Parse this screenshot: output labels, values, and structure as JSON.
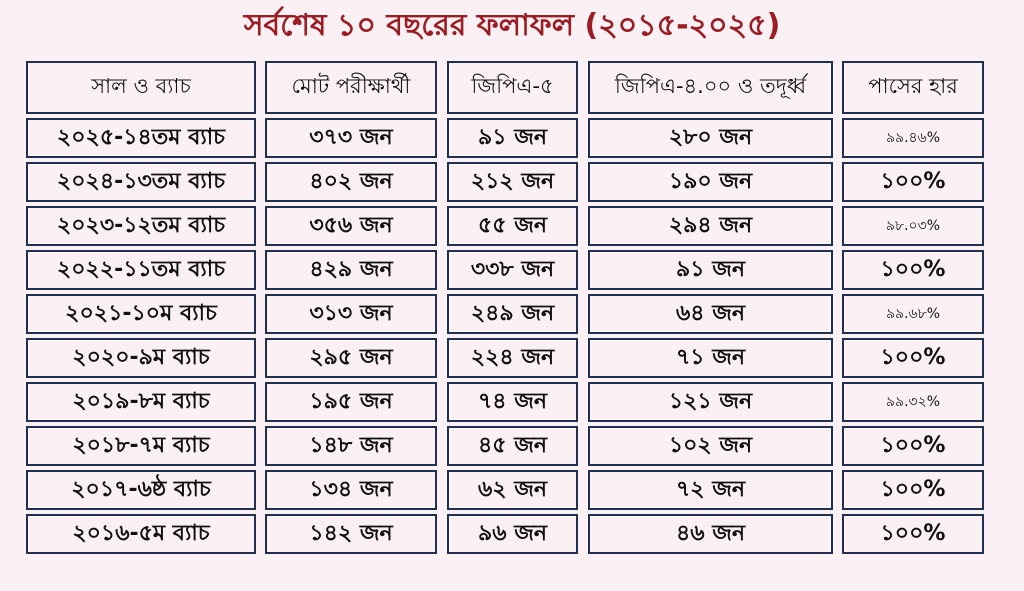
{
  "title": "সর্বশেষ ১০ বছরের ফলাফল (২০১৫-২০২৫)",
  "headers": [
    "সাল ও ব্যাচ",
    "মোট পরীক্ষার্থী",
    "জিপিএ-৫",
    "জিপিএ-৪.০০ ও তদূর্ধ্ব",
    "পাসের হার"
  ],
  "rows": [
    [
      "২০২৫-১৪তম ব্যাচ",
      "৩৭৩ জন",
      "৯১ জন",
      "২৮০ জন",
      "৯৯.৪৬%"
    ],
    [
      "২০২৪-১৩তম ব্যাচ",
      "৪০২ জন",
      "২১২ জন",
      "১৯০ জন",
      "১০০%"
    ],
    [
      "২০২৩-১২তম ব্যাচ",
      "৩৫৬ জন",
      "৫৫ জন",
      "২৯৪ জন",
      "৯৮.০৩%"
    ],
    [
      "২০২২-১১তম ব্যাচ",
      "৪২৯ জন",
      "৩৩৮ জন",
      "৯১ জন",
      "১০০%"
    ],
    [
      "২০২১-১০ম ব্যাচ",
      "৩১৩ জন",
      "২৪৯ জন",
      "৬৪ জন",
      "৯৯.৬৮%"
    ],
    [
      "২০২০-৯ম ব্যাচ",
      "২৯৫ জন",
      "২২৪ জন",
      "৭১ জন",
      "১০০%"
    ],
    [
      "২০১৯-৮ম ব্যাচ",
      "১৯৫ জন",
      "৭৪ জন",
      "১২১ জন",
      "৯৯.৩২%"
    ],
    [
      "২০১৮-৭ম ব্যাচ",
      "১৪৮ জন",
      "৪৫ জন",
      "১০২ জন",
      "১০০%"
    ],
    [
      "২০১৭-৬ষ্ঠ ব্যাচ",
      "১৩৪ জন",
      "৬২ জন",
      "৭২ জন",
      "১০০%"
    ],
    [
      "২০১৬-৫ম ব্যাচ",
      "১৪২ জন",
      "৯৬ জন",
      "৪৬ জন",
      "১০০%"
    ]
  ],
  "colors": {
    "title": "#9c1c24",
    "border": "#20304f",
    "background": "#fbf1f4"
  }
}
